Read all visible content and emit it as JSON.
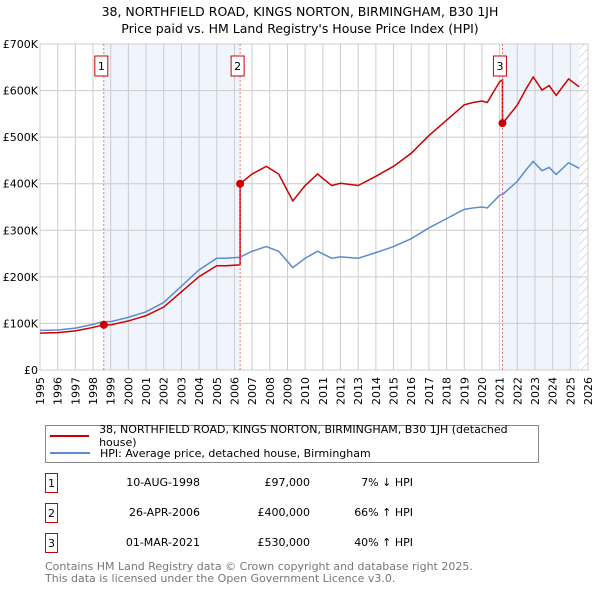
{
  "chart_data": {
    "type": "line",
    "title": "38, NORTHFIELD ROAD, KINGS NORTON, BIRMINGHAM, B30 1JH",
    "subtitle": "Price paid vs. HM Land Registry's House Price Index (HPI)",
    "xlim": [
      1995,
      2026
    ],
    "ylim": [
      0,
      700000
    ],
    "y_ticks": [
      {
        "v": 0,
        "label": "£0"
      },
      {
        "v": 100000,
        "label": "£100K"
      },
      {
        "v": 200000,
        "label": "£200K"
      },
      {
        "v": 300000,
        "label": "£300K"
      },
      {
        "v": 400000,
        "label": "£400K"
      },
      {
        "v": 500000,
        "label": "£500K"
      },
      {
        "v": 600000,
        "label": "£600K"
      },
      {
        "v": 700000,
        "label": "£700K"
      }
    ],
    "x_ticks": [
      "1995",
      "1996",
      "1997",
      "1998",
      "1999",
      "2000",
      "2001",
      "2002",
      "2003",
      "2004",
      "2005",
      "2006",
      "2007",
      "2008",
      "2009",
      "2010",
      "2011",
      "2012",
      "2013",
      "2014",
      "2015",
      "2016",
      "2017",
      "2018",
      "2019",
      "2020",
      "2021",
      "2022",
      "2023",
      "2024",
      "2025",
      "2026"
    ],
    "hpi": {
      "name": "HPI: Average price, detached house, Birmingham",
      "color": "#5b8bd0",
      "x": [
        1995,
        1996,
        1997,
        1998,
        1998.6,
        1999,
        2000,
        2001,
        2002,
        2003,
        2004,
        2005,
        2005.5,
        2006.3,
        2007,
        2007.8,
        2008.5,
        2009.3,
        2010,
        2010.7,
        2011.5,
        2012,
        2013,
        2014,
        2015,
        2016,
        2017,
        2018,
        2019,
        2019.5,
        2020,
        2020.3,
        2021,
        2021.2,
        2022,
        2022.5,
        2022.9,
        2023.4,
        2023.8,
        2024.2,
        2024.9,
        2025.5
      ],
      "y": [
        85000,
        86000,
        90000,
        98000,
        104000,
        104000,
        113000,
        125000,
        145000,
        180000,
        215000,
        240000,
        240000,
        242000,
        255000,
        265000,
        255000,
        220000,
        240000,
        255000,
        240000,
        243000,
        240000,
        252000,
        265000,
        282000,
        305000,
        325000,
        345000,
        348000,
        350000,
        348000,
        375000,
        378000,
        405000,
        430000,
        448000,
        428000,
        435000,
        420000,
        445000,
        433000
      ]
    },
    "property": {
      "name": "38, NORTHFIELD ROAD, KINGS NORTON, BIRMINGHAM, B30 1JH (detached house)",
      "color": "#cc0000"
    },
    "sales": [
      {
        "n": "1",
        "date": "10-AUG-1998",
        "x": 1998.61,
        "price": 97000,
        "price_label": "£97,000",
        "hpi_label": "7% ↓ HPI"
      },
      {
        "n": "2",
        "date": "26-APR-2006",
        "x": 2006.32,
        "price": 400000,
        "price_label": "£400,000",
        "hpi_label": "66% ↑ HPI"
      },
      {
        "n": "3",
        "date": "01-MAR-2021",
        "x": 2021.16,
        "price": 530000,
        "price_label": "£530,000",
        "hpi_label": "40% ↑ HPI"
      }
    ],
    "data_end": 2025.5
  },
  "footer": {
    "line1": "Contains HM Land Registry data © Crown copyright and database right 2025.",
    "line2": "This data is licensed under the Open Government Licence v3.0."
  }
}
